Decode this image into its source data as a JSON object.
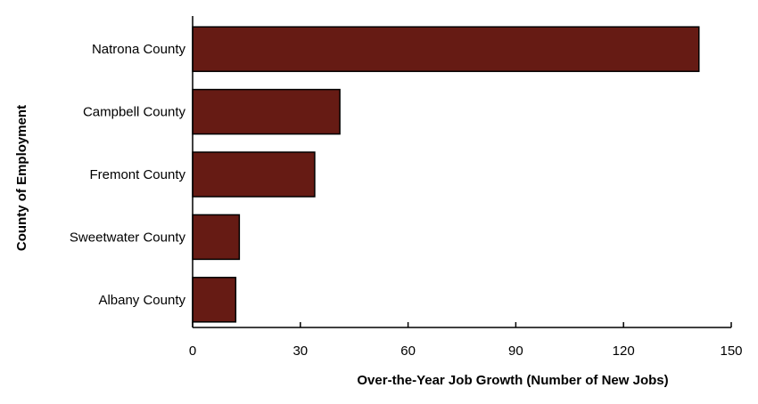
{
  "chart_data": {
    "type": "bar",
    "orientation": "horizontal",
    "title": "",
    "xlabel": "Over-the-Year Job Growth (Number of New Jobs)",
    "ylabel": "County of Employment",
    "categories": [
      "Natrona County",
      "Campbell County",
      "Fremont County",
      "Sweetwater County",
      "Albany County"
    ],
    "values": [
      141,
      41,
      34,
      13,
      12
    ],
    "xlim": [
      0,
      150
    ],
    "xticks": [
      0,
      30,
      60,
      90,
      120,
      150
    ],
    "grid": false,
    "legend": "none",
    "bar_color": "#661b14",
    "bar_edge_color": "#000000"
  }
}
